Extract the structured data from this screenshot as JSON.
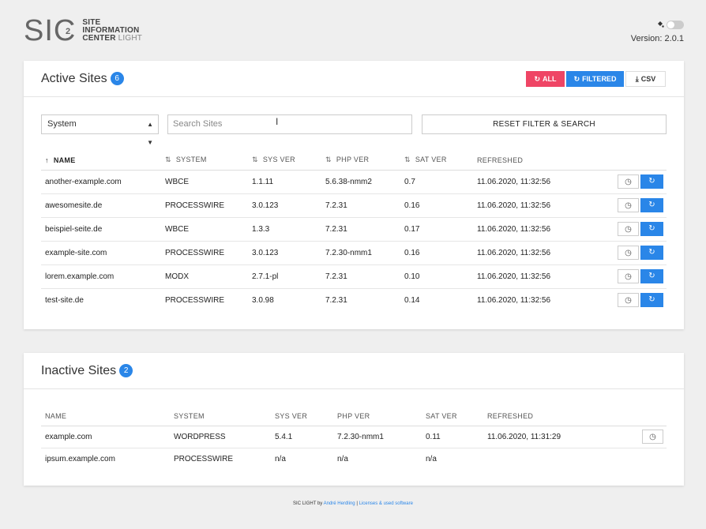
{
  "header": {
    "logo_sic": "SIC",
    "logo_sup": "2",
    "logo_line1": "SITE",
    "logo_line2": "INFORMATION",
    "logo_line3_bold": "CENTER",
    "logo_line3_light": "LIGHT",
    "version": "Version: 2.0.1"
  },
  "active": {
    "title": "Active Sites",
    "count": "6",
    "buttons": {
      "all": "ALL",
      "filtered": "FILTERED",
      "csv": "CSV"
    },
    "filter": {
      "select_value": "System",
      "search_placeholder": "Search Sites",
      "reset_label": "RESET FILTER & SEARCH"
    },
    "columns": [
      "NAME",
      "SYSTEM",
      "SYS VER",
      "PHP VER",
      "SAT VER",
      "REFRESHED"
    ],
    "rows": [
      [
        "another-example.com",
        "WBCE",
        "1.1.11",
        "5.6.38-nmm2",
        "0.7",
        "11.06.2020, 11:32:56"
      ],
      [
        "awesomesite.de",
        "PROCESSWIRE",
        "3.0.123",
        "7.2.31",
        "0.16",
        "11.06.2020, 11:32:56"
      ],
      [
        "beispiel-seite.de",
        "WBCE",
        "1.3.3",
        "7.2.31",
        "0.17",
        "11.06.2020, 11:32:56"
      ],
      [
        "example-site.com",
        "PROCESSWIRE",
        "3.0.123",
        "7.2.30-nmm1",
        "0.16",
        "11.06.2020, 11:32:56"
      ],
      [
        "lorem.example.com",
        "MODX",
        "2.7.1-pl",
        "7.2.31",
        "0.10",
        "11.06.2020, 11:32:56"
      ],
      [
        "test-site.de",
        "PROCESSWIRE",
        "3.0.98",
        "7.2.31",
        "0.14",
        "11.06.2020, 11:32:56"
      ]
    ]
  },
  "inactive": {
    "title": "Inactive Sites",
    "count": "2",
    "columns": [
      "NAME",
      "SYSTEM",
      "SYS VER",
      "PHP VER",
      "SAT VER",
      "REFRESHED"
    ],
    "rows": [
      [
        "example.com",
        "WORDPRESS",
        "5.4.1",
        "7.2.30-nmm1",
        "0.11",
        "11.06.2020, 11:31:29"
      ],
      [
        "ipsum.example.com",
        "PROCESSWIRE",
        "n/a",
        "n/a",
        "n/a",
        ""
      ]
    ]
  },
  "footer": {
    "prefix": "SIC LIGHT by",
    "author": "André Herdling",
    "sep": "|",
    "licenses": "Licenses & used software"
  },
  "colors": {
    "accent": "#2a86e8",
    "danger": "#ef4565"
  },
  "icons": {
    "history": "clock-icon",
    "refresh": "refresh-icon",
    "download": "download-icon",
    "sort": "sort-icon"
  }
}
